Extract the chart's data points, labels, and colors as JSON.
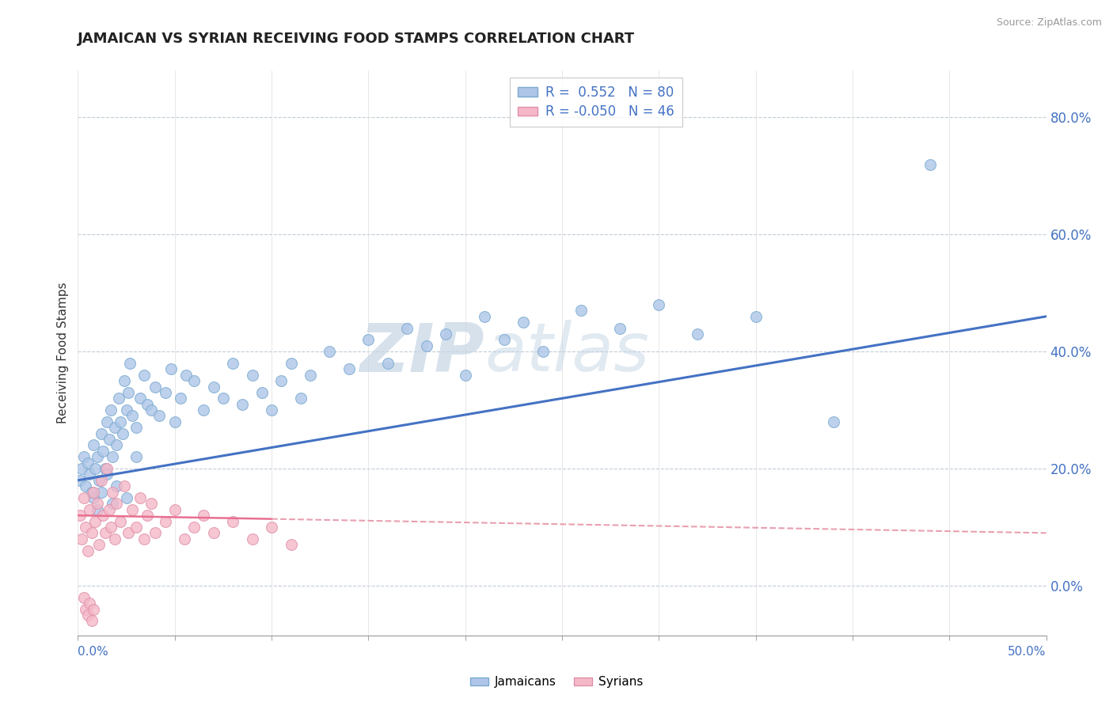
{
  "title": "JAMAICAN VS SYRIAN RECEIVING FOOD STAMPS CORRELATION CHART",
  "source": "Source: ZipAtlas.com",
  "ylabel": "Receiving Food Stamps",
  "right_yticks": [
    0.0,
    0.2,
    0.4,
    0.6,
    0.8
  ],
  "right_yticklabels": [
    "0.0%",
    "20.0%",
    "40.0%",
    "60.0%",
    "80.0%"
  ],
  "xmin": 0.0,
  "xmax": 0.5,
  "ymin": -0.085,
  "ymax": 0.88,
  "r_blue": " 0.552",
  "n_blue": "80",
  "r_pink": "-0.050",
  "n_pink": "46",
  "blue_face": "#aec6e8",
  "blue_edge": "#7aaad0",
  "pink_face": "#f4b8c8",
  "pink_edge": "#e090a8",
  "blue_line": "#4472c4",
  "pink_line_solid": "#e87090",
  "pink_line_dash": "#e8a0b0",
  "watermark_zip": "ZIP",
  "watermark_atlas": "atlas",
  "jamaicans_x": [
    0.001,
    0.002,
    0.003,
    0.004,
    0.005,
    0.006,
    0.007,
    0.008,
    0.009,
    0.01,
    0.011,
    0.012,
    0.013,
    0.014,
    0.015,
    0.016,
    0.017,
    0.018,
    0.019,
    0.02,
    0.021,
    0.022,
    0.023,
    0.024,
    0.025,
    0.026,
    0.027,
    0.028,
    0.03,
    0.032,
    0.034,
    0.036,
    0.038,
    0.04,
    0.042,
    0.045,
    0.048,
    0.05,
    0.053,
    0.056,
    0.06,
    0.065,
    0.07,
    0.075,
    0.08,
    0.085,
    0.09,
    0.095,
    0.1,
    0.105,
    0.11,
    0.115,
    0.12,
    0.13,
    0.14,
    0.15,
    0.16,
    0.17,
    0.18,
    0.19,
    0.2,
    0.21,
    0.22,
    0.23,
    0.24,
    0.26,
    0.28,
    0.3,
    0.32,
    0.35,
    0.008,
    0.01,
    0.012,
    0.015,
    0.018,
    0.02,
    0.025,
    0.03,
    0.39,
    0.44
  ],
  "jamaicans_y": [
    0.18,
    0.2,
    0.22,
    0.17,
    0.21,
    0.19,
    0.16,
    0.24,
    0.2,
    0.22,
    0.18,
    0.26,
    0.23,
    0.2,
    0.28,
    0.25,
    0.3,
    0.22,
    0.27,
    0.24,
    0.32,
    0.28,
    0.26,
    0.35,
    0.3,
    0.33,
    0.38,
    0.29,
    0.27,
    0.32,
    0.36,
    0.31,
    0.3,
    0.34,
    0.29,
    0.33,
    0.37,
    0.28,
    0.32,
    0.36,
    0.35,
    0.3,
    0.34,
    0.32,
    0.38,
    0.31,
    0.36,
    0.33,
    0.3,
    0.35,
    0.38,
    0.32,
    0.36,
    0.4,
    0.37,
    0.42,
    0.38,
    0.44,
    0.41,
    0.43,
    0.36,
    0.46,
    0.42,
    0.45,
    0.4,
    0.47,
    0.44,
    0.48,
    0.43,
    0.46,
    0.15,
    0.13,
    0.16,
    0.19,
    0.14,
    0.17,
    0.15,
    0.22,
    0.28,
    0.72
  ],
  "syrians_x": [
    0.001,
    0.002,
    0.003,
    0.004,
    0.005,
    0.006,
    0.007,
    0.008,
    0.009,
    0.01,
    0.011,
    0.012,
    0.013,
    0.014,
    0.015,
    0.016,
    0.017,
    0.018,
    0.019,
    0.02,
    0.022,
    0.024,
    0.026,
    0.028,
    0.03,
    0.032,
    0.034,
    0.036,
    0.038,
    0.04,
    0.045,
    0.05,
    0.055,
    0.06,
    0.065,
    0.07,
    0.08,
    0.09,
    0.1,
    0.11,
    0.003,
    0.004,
    0.005,
    0.006,
    0.007,
    0.008
  ],
  "syrians_y": [
    0.12,
    0.08,
    0.15,
    0.1,
    0.06,
    0.13,
    0.09,
    0.16,
    0.11,
    0.14,
    0.07,
    0.18,
    0.12,
    0.09,
    0.2,
    0.13,
    0.1,
    0.16,
    0.08,
    0.14,
    0.11,
    0.17,
    0.09,
    0.13,
    0.1,
    0.15,
    0.08,
    0.12,
    0.14,
    0.09,
    0.11,
    0.13,
    0.08,
    0.1,
    0.12,
    0.09,
    0.11,
    0.08,
    0.1,
    0.07,
    -0.02,
    -0.04,
    -0.05,
    -0.03,
    -0.06,
    -0.04
  ]
}
